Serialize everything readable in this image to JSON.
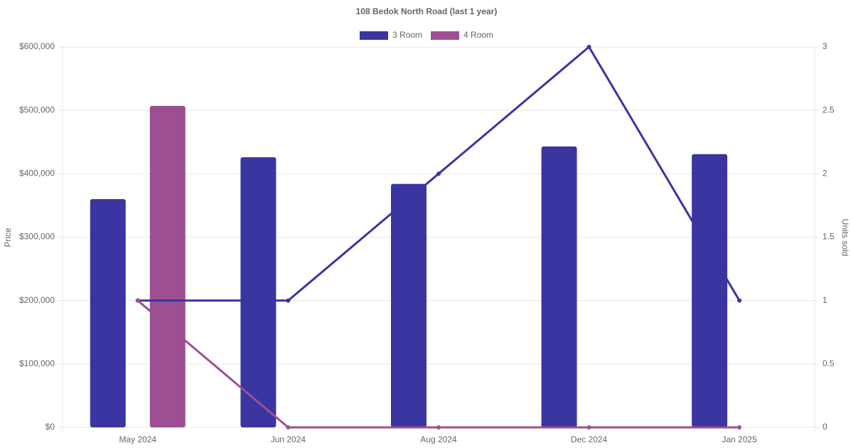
{
  "chart_data": {
    "type": "bar",
    "title": "108 Bedok North Road (last 1 year)",
    "categories": [
      "May 2024",
      "Jun 2024",
      "Aug 2024",
      "Dec 2024",
      "Jan 2025"
    ],
    "series": [
      {
        "name": "3 Room",
        "color": "#3a35a0",
        "values": [
          360000,
          426000,
          384000,
          443000,
          431000
        ]
      },
      {
        "name": "4 Room",
        "color": "#9e4f93",
        "values": [
          507000,
          null,
          null,
          null,
          null
        ]
      },
      {
        "type": "line",
        "axis": "y2",
        "color": "#3a35a0",
        "values": [
          1,
          1,
          2,
          3,
          1
        ]
      },
      {
        "type": "line",
        "axis": "y2",
        "color": "#9e4f93",
        "values": [
          1,
          0,
          0,
          0,
          0
        ]
      }
    ],
    "y_label": "Price",
    "y2_label": "Units sold",
    "ylim": [
      0,
      600000
    ],
    "yticks": [
      {
        "value": 0,
        "label": "$0"
      },
      {
        "value": 100000,
        "label": "$100,000"
      },
      {
        "value": 200000,
        "label": "$200,000"
      },
      {
        "value": 300000,
        "label": "$300,000"
      },
      {
        "value": 400000,
        "label": "$400,000"
      },
      {
        "value": 500000,
        "label": "$500,000"
      },
      {
        "value": 600000,
        "label": "$600,000"
      }
    ],
    "y2lim": [
      0,
      3
    ],
    "y2ticks": [
      0,
      0.5,
      1,
      1.5,
      2,
      2.5,
      3
    ],
    "grid": true
  }
}
